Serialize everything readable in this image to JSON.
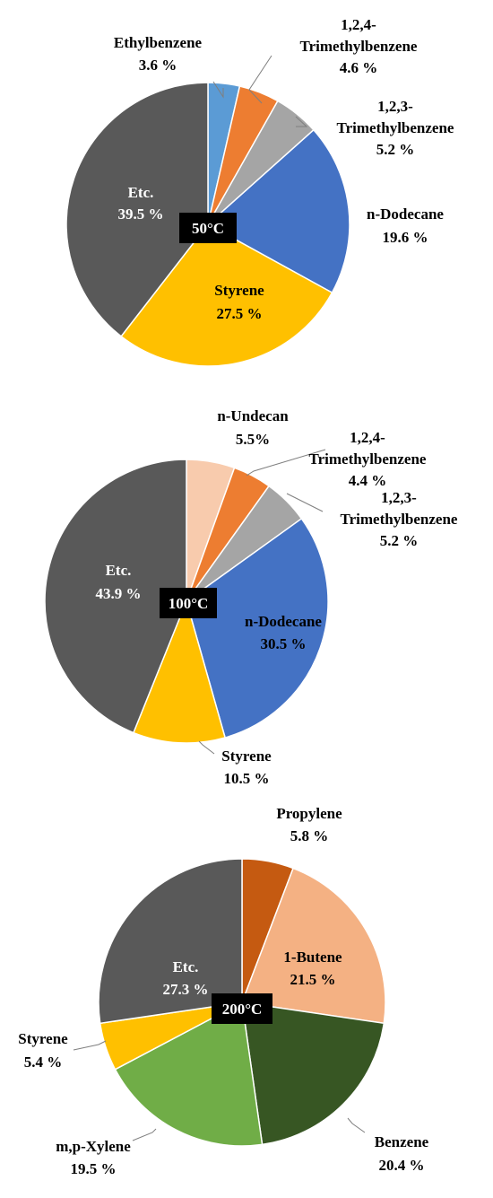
{
  "chart_data": [
    {
      "type": "pie",
      "temperature_label": "50°C",
      "slices": [
        {
          "name_lines": [
            "Ethylbenzene"
          ],
          "value": 3.6,
          "display": "3.6 %",
          "color": "#5B9BD5"
        },
        {
          "name_lines": [
            "1,2,4-",
            "Trimethylbenzene"
          ],
          "value": 4.6,
          "display": "4.6 %",
          "color": "#ED7D31"
        },
        {
          "name_lines": [
            "1,2,3-",
            "Trimethylbenzene"
          ],
          "value": 5.2,
          "display": "5.2 %",
          "color": "#A5A5A5"
        },
        {
          "name_lines": [
            "n-Dodecane"
          ],
          "value": 19.6,
          "display": "19.6 %",
          "color": "#4472C4"
        },
        {
          "name_lines": [
            "Styrene"
          ],
          "value": 27.5,
          "display": "27.5 %",
          "color": "#FFC000"
        },
        {
          "name_lines": [
            "Etc."
          ],
          "value": 39.5,
          "display": "39.5 %",
          "color": "#595959"
        }
      ]
    },
    {
      "type": "pie",
      "temperature_label": "100°C",
      "slices": [
        {
          "name_lines": [
            "n-Undecan"
          ],
          "value": 5.5,
          "display": "5.5%",
          "color": "#F8CBAD"
        },
        {
          "name_lines": [
            "1,2,4-",
            "Trimethylbenzene"
          ],
          "value": 4.4,
          "display": "4.4 %",
          "color": "#ED7D31"
        },
        {
          "name_lines": [
            "1,2,3-",
            "Trimethylbenzene"
          ],
          "value": 5.2,
          "display": "5.2 %",
          "color": "#A5A5A5"
        },
        {
          "name_lines": [
            "n-Dodecane"
          ],
          "value": 30.5,
          "display": "30.5 %",
          "color": "#4472C4"
        },
        {
          "name_lines": [
            "Styrene"
          ],
          "value": 10.5,
          "display": "10.5 %",
          "color": "#FFC000"
        },
        {
          "name_lines": [
            "Etc."
          ],
          "value": 43.9,
          "display": "43.9 %",
          "color": "#595959"
        }
      ]
    },
    {
      "type": "pie",
      "temperature_label": "200°C",
      "slices": [
        {
          "name_lines": [
            "Propylene"
          ],
          "value": 5.8,
          "display": "5.8 %",
          "color": "#C55A11"
        },
        {
          "name_lines": [
            "1-Butene"
          ],
          "value": 21.5,
          "display": "21.5 %",
          "color": "#F4B183"
        },
        {
          "name_lines": [
            "Benzene"
          ],
          "value": 20.4,
          "display": "20.4 %",
          "color": "#375623"
        },
        {
          "name_lines": [
            "m,p-Xylene"
          ],
          "value": 19.5,
          "display": "19.5 %",
          "color": "#70AD47"
        },
        {
          "name_lines": [
            "Styrene"
          ],
          "value": 5.4,
          "display": "5.4 %",
          "color": "#FFC000"
        },
        {
          "name_lines": [
            "Etc."
          ],
          "value": 27.3,
          "display": "27.3 %",
          "color": "#595959"
        }
      ]
    }
  ]
}
